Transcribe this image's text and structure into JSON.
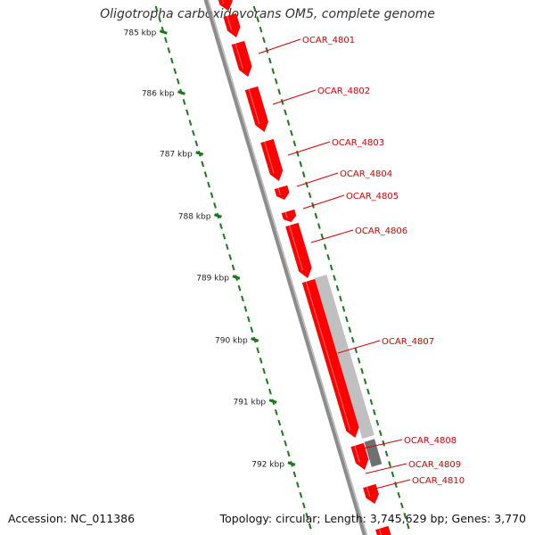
{
  "title": "Oligotropha carboxidovorans OM5, complete genome",
  "footer": {
    "accession": "Accession: NC_011386",
    "summary": "Topology: circular; Length: 3,745,629 bp; Genes: 3,770"
  },
  "colors": {
    "backbone": "#8c8c8c",
    "gene": "#ff0000",
    "gene_dark": "#c00000",
    "gene_label": "#d40000",
    "tick": "#1a7a1a",
    "pseudo_light": "#c0c0c0",
    "pseudo_dark": "#707070"
  },
  "scale": {
    "labels": [
      "785 kbp",
      "786 kbp",
      "787 kbp",
      "788 kbp",
      "789 kbp",
      "790 kbp",
      "791 kbp",
      "792 kbp"
    ]
  },
  "genes": [
    {
      "label": "OCAR_4801"
    },
    {
      "label": "OCAR_4802"
    },
    {
      "label": "OCAR_4803"
    },
    {
      "label": "OCAR_4804"
    },
    {
      "label": "OCAR_4805"
    },
    {
      "label": "OCAR_4806"
    },
    {
      "label": "OCAR_4807"
    },
    {
      "label": "OCAR_4808"
    },
    {
      "label": "OCAR_4809"
    },
    {
      "label": "OCAR_4810"
    }
  ]
}
